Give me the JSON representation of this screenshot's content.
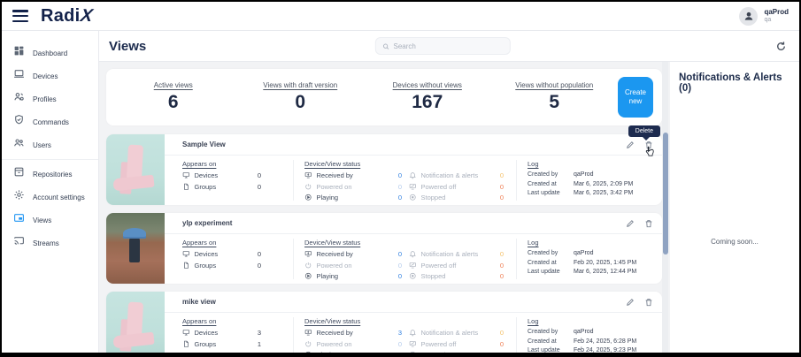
{
  "topbar": {
    "logo": "Radi",
    "logo_x": "X",
    "user": {
      "name": "qaProd",
      "org": "qa"
    }
  },
  "sidebar": {
    "items": [
      {
        "label": "Dashboard",
        "icon": "dashboard-icon",
        "active": false
      },
      {
        "label": "Devices",
        "icon": "devices-icon",
        "active": false
      },
      {
        "label": "Profiles",
        "icon": "profiles-icon",
        "active": false
      },
      {
        "label": "Commands",
        "icon": "commands-icon",
        "active": false
      },
      {
        "label": "Users",
        "icon": "users-icon",
        "active": false
      },
      {
        "label": "Repositories",
        "icon": "repositories-icon",
        "active": false
      },
      {
        "label": "Account settings",
        "icon": "settings-icon",
        "active": false
      },
      {
        "label": "Views",
        "icon": "views-icon",
        "active": true
      },
      {
        "label": "Streams",
        "icon": "streams-icon",
        "active": false
      }
    ]
  },
  "header": {
    "title": "Views",
    "search_placeholder": "Search"
  },
  "stats": [
    {
      "label": "Active views",
      "value": "6"
    },
    {
      "label": "Views with draft version",
      "value": "0"
    },
    {
      "label": "Devices without views",
      "value": "167"
    },
    {
      "label": "Views without population",
      "value": "5"
    }
  ],
  "create_button_label": "Create new",
  "delete_tooltip": "Delete",
  "card_labels": {
    "appears_heading": "Appears on",
    "devices": "Devices",
    "groups": "Groups",
    "status_heading": "Device/View status",
    "received": "Received by",
    "powered_on": "Powered on",
    "playing": "Playing",
    "notifications": "Notification & alerts",
    "powered_off": "Powered off",
    "stopped": "Stopped",
    "log_heading": "Log",
    "created_by": "Created by",
    "created_at": "Created at",
    "last_update": "Last update"
  },
  "cards": [
    {
      "title": "Sample View",
      "thumb": "pink-sculpture",
      "show_tooltip": true,
      "devices": "0",
      "groups": "0",
      "received": "0",
      "powered_on": "0",
      "playing": "0",
      "notifications": "0",
      "powered_off": "0",
      "stopped": "0",
      "created_by": "qaProd",
      "created_at": "Mar 6, 2025, 2:09 PM",
      "last_update": "Mar 6, 2025, 3:42 PM"
    },
    {
      "title": "ylp experiment",
      "thumb": "rain-walk",
      "show_tooltip": false,
      "devices": "0",
      "groups": "0",
      "received": "0",
      "powered_on": "0",
      "playing": "0",
      "notifications": "0",
      "powered_off": "0",
      "stopped": "0",
      "created_by": "qaProd",
      "created_at": "Feb 20, 2025, 1:45 PM",
      "last_update": "Mar 6, 2025, 12:44 PM"
    },
    {
      "title": "mike view",
      "thumb": "pink-sculpture",
      "show_tooltip": false,
      "devices": "3",
      "groups": "1",
      "received": "3",
      "powered_on": "0",
      "playing": "3",
      "notifications": "0",
      "powered_off": "0",
      "stopped": "0",
      "created_by": "qaProd",
      "created_at": "Feb 24, 2025, 6:28 PM",
      "last_update": "Feb 24, 2025, 9:23 PM"
    }
  ],
  "right_panel": {
    "title": "Notifications & Alerts (0)",
    "body": "Coming soon..."
  },
  "colors": {
    "accent_blue": "#1b97f0",
    "value_blue": "#2e7fe0",
    "value_orange": "#ee7d52",
    "navy": "#13224a"
  }
}
